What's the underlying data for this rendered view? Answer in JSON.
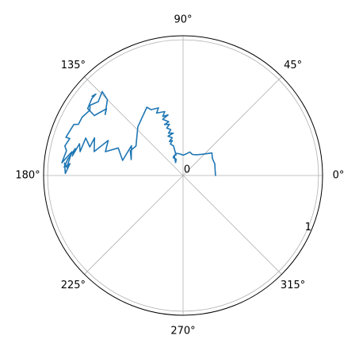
{
  "chart_data": {
    "type": "line",
    "projection": "polar",
    "theta_unit": "degrees",
    "title": "",
    "angle_tick_labels": [
      "0°",
      "45°",
      "90°",
      "135°",
      "180°",
      "225°",
      "270°",
      "315°"
    ],
    "angle_tick_values": [
      0,
      45,
      90,
      135,
      180,
      225,
      270,
      315
    ],
    "radial_tick_labels": [
      "0",
      "1"
    ],
    "radial_tick_values": [
      0,
      1
    ],
    "radial_label_angle_deg": 337.5,
    "rlim": [
      0,
      1.03
    ],
    "grid": true,
    "legend": "none",
    "colors": {
      "series": "#1f77b4",
      "grid": "#b0b0b0",
      "frame": "#000000"
    },
    "series": [
      {
        "points": [
          [
            0,
            0.24
          ],
          [
            10,
            0.24
          ],
          [
            20,
            0.25
          ],
          [
            30,
            0.25
          ],
          [
            38,
            0.27
          ],
          [
            48,
            0.21
          ],
          [
            58,
            0.18
          ],
          [
            66,
            0.17
          ],
          [
            74,
            0.18
          ],
          [
            82,
            0.16
          ],
          [
            90,
            0.15
          ],
          [
            98,
            0.16
          ],
          [
            106,
            0.17
          ],
          [
            114,
            0.16
          ],
          [
            120,
            0.11
          ],
          [
            116,
            0.12
          ],
          [
            113,
            0.13
          ],
          [
            119,
            0.15
          ],
          [
            115,
            0.16
          ],
          [
            109,
            0.16
          ],
          [
            108,
            0.23
          ],
          [
            112,
            0.25
          ],
          [
            107,
            0.27
          ],
          [
            112,
            0.27
          ],
          [
            106,
            0.29
          ],
          [
            111,
            0.31
          ],
          [
            103,
            0.32
          ],
          [
            109,
            0.33
          ],
          [
            105,
            0.35
          ],
          [
            109,
            0.37
          ],
          [
            105,
            0.39
          ],
          [
            110,
            0.4
          ],
          [
            105,
            0.41
          ],
          [
            110,
            0.44
          ],
          [
            104,
            0.46
          ],
          [
            109,
            0.46
          ],
          [
            106,
            0.49
          ],
          [
            113,
            0.5
          ],
          [
            110,
            0.53
          ],
          [
            116,
            0.54
          ],
          [
            118,
            0.57
          ],
          [
            133,
            0.49
          ],
          [
            148,
            0.41
          ],
          [
            155,
            0.43
          ],
          [
            163,
            0.4
          ],
          [
            150,
            0.44
          ],
          [
            166,
            0.46
          ],
          [
            157,
            0.52
          ],
          [
            163,
            0.6
          ],
          [
            155,
            0.61
          ],
          [
            165,
            0.68
          ],
          [
            157,
            0.71
          ],
          [
            163,
            0.72
          ],
          [
            159,
            0.77
          ],
          [
            167,
            0.78
          ],
          [
            163,
            0.8
          ],
          [
            170,
            0.83
          ],
          [
            166,
            0.82
          ],
          [
            172,
            0.86
          ],
          [
            176,
            0.88
          ],
          [
            174,
            0.84
          ],
          [
            179,
            0.87
          ],
          [
            174,
            0.88
          ],
          [
            176,
            0.86
          ],
          [
            168,
            0.84
          ],
          [
            174,
            0.9
          ],
          [
            168,
            0.88
          ],
          [
            166,
            0.9
          ],
          [
            162,
            0.88
          ],
          [
            162,
            0.91
          ],
          [
            155,
            0.89
          ],
          [
            154,
            0.86
          ],
          [
            150,
            0.86
          ],
          [
            145,
            0.84
          ],
          [
            143,
            0.86
          ],
          [
            139,
            0.83
          ],
          [
            134,
            0.86
          ],
          [
            135,
            0.79
          ],
          [
            142,
            0.73
          ],
          [
            139,
            0.75
          ],
          [
            146,
            0.79
          ],
          [
            145,
            0.86
          ],
          [
            140,
            0.88
          ],
          [
            137,
            0.88
          ],
          [
            139,
            0.89
          ]
        ]
      }
    ]
  }
}
